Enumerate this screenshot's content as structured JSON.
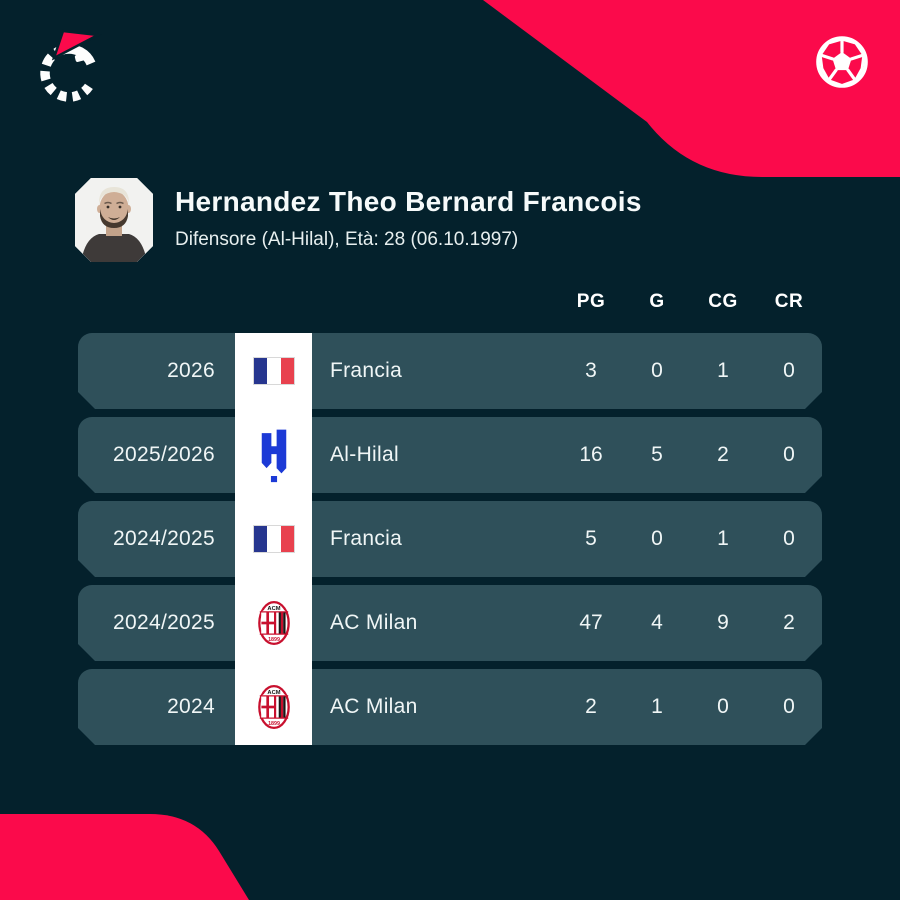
{
  "brand": {
    "logo_icon": "flashscore-logo",
    "ball_icon": "soccer-ball-icon"
  },
  "player": {
    "name": "Hernandez Theo Bernard Francois",
    "details": "Difensore (Al-Hilal), Età: 28 (06.10.1997)",
    "photo": "player-headshot"
  },
  "table": {
    "headers": [
      "PG",
      "G",
      "CG",
      "CR"
    ],
    "rows": [
      {
        "season": "2026",
        "team": "Francia",
        "badge": "france-flag",
        "stats": [
          "3",
          "0",
          "1",
          "0"
        ]
      },
      {
        "season": "2025/2026",
        "team": "Al-Hilal",
        "badge": "al-hilal-crest",
        "stats": [
          "16",
          "5",
          "2",
          "0"
        ]
      },
      {
        "season": "2024/2025",
        "team": "Francia",
        "badge": "france-flag",
        "stats": [
          "5",
          "0",
          "1",
          "0"
        ]
      },
      {
        "season": "2024/2025",
        "team": "AC Milan",
        "badge": "ac-milan-crest",
        "stats": [
          "47",
          "4",
          "9",
          "2"
        ]
      },
      {
        "season": "2024",
        "team": "AC Milan",
        "badge": "ac-milan-crest",
        "stats": [
          "2",
          "1",
          "0",
          "0"
        ]
      }
    ]
  },
  "colors": {
    "background": "#04212c",
    "row": "#2f505a",
    "accent_red": "#fb0a4b",
    "badge_column": "#ffffff",
    "flag_blue": "#27368f",
    "flag_red": "#e8414e",
    "hilal_blue": "#1c3ad6",
    "milan_red": "#c8102e",
    "milan_black": "#161616"
  }
}
